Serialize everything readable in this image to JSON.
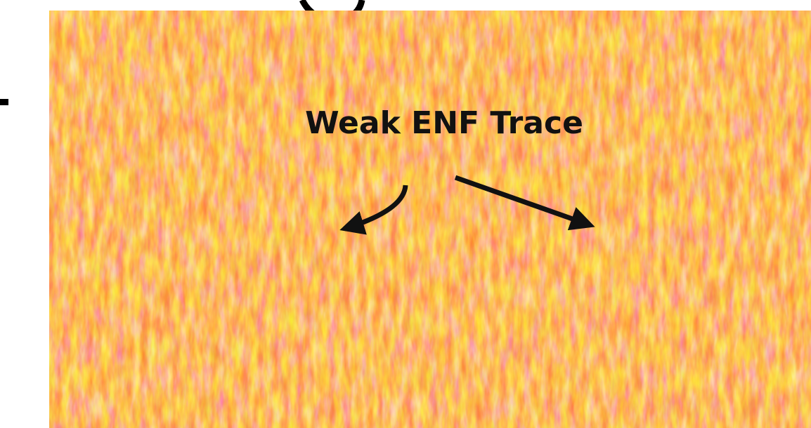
{
  "image": {
    "annotation": "Weak ENF Trace"
  }
}
